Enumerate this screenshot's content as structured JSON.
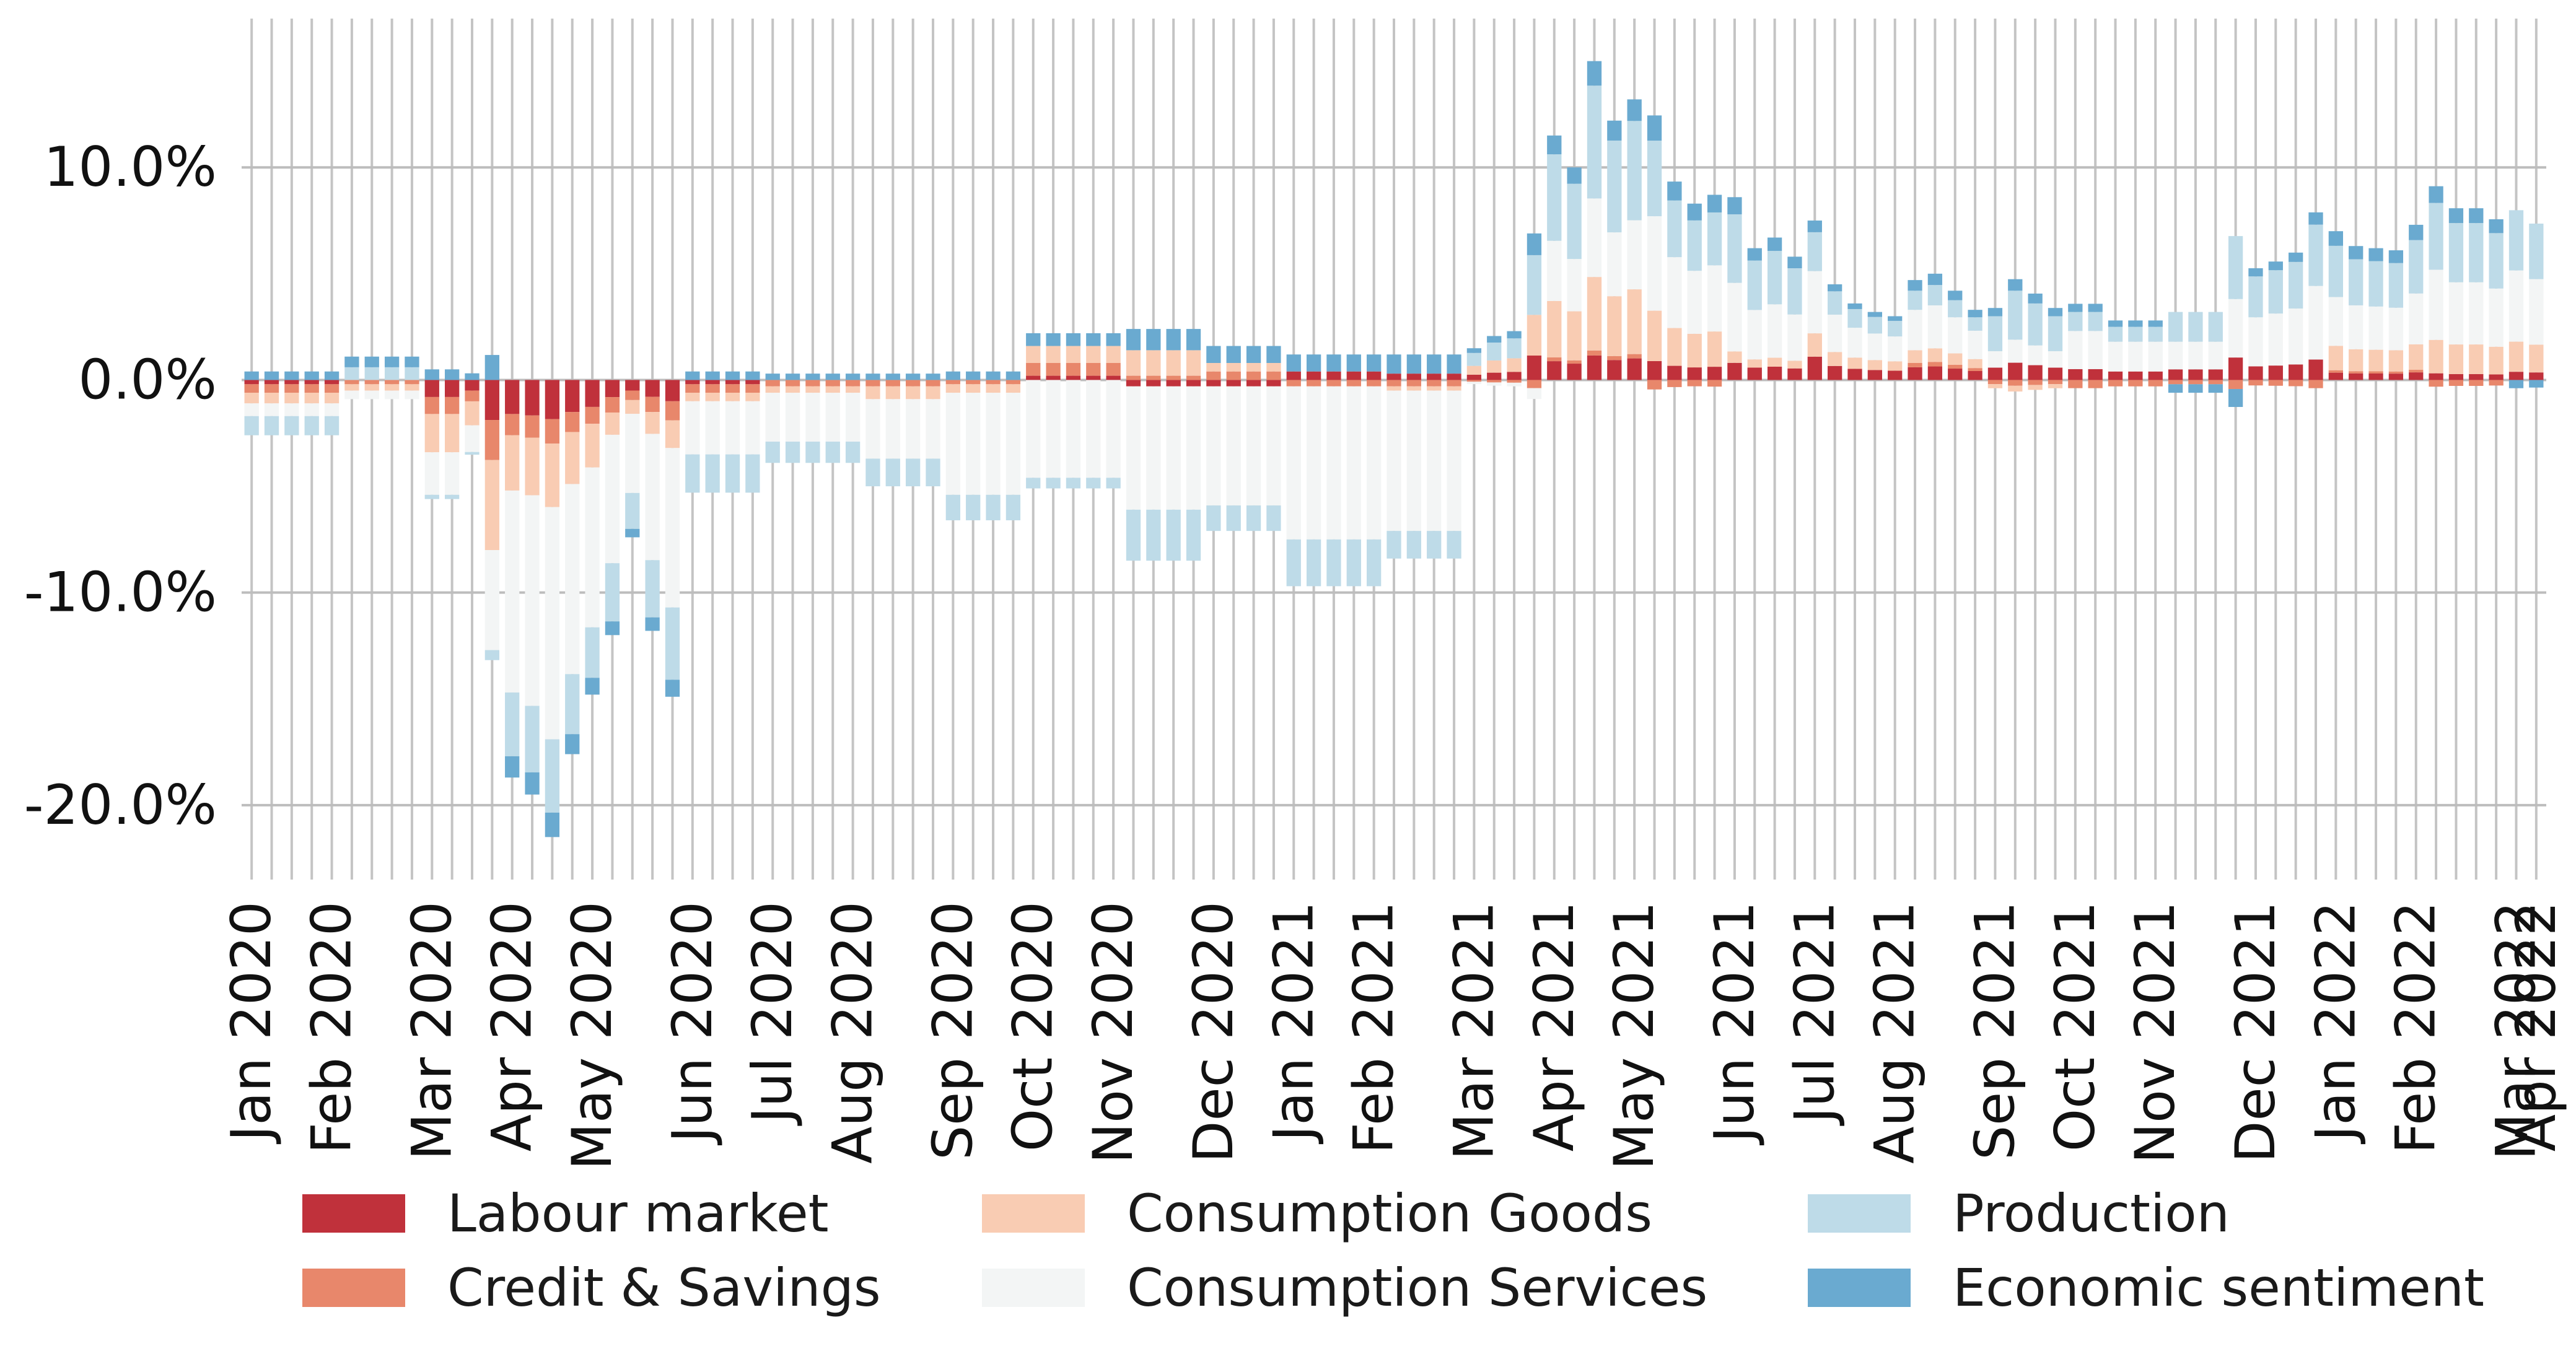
{
  "chart_data": {
    "type": "bar",
    "stacked": true,
    "x_tick_labels": [
      "Jan 2020",
      "Feb 2020",
      "Mar 2020",
      "Apr 2020",
      "May 2020",
      "Jun 2020",
      "Jul 2020",
      "Aug 2020",
      "Sep 2020",
      "Oct 2020",
      "Nov 2020",
      "Dec 2020",
      "Jan 2021",
      "Feb 2021",
      "Mar 2021",
      "Apr 2021",
      "May 2021",
      "Jun 2021",
      "Jul 2021",
      "Aug 2021",
      "Sep 2021",
      "Oct 2021",
      "Nov 2021",
      "Dec 2021",
      "Jan 2022",
      "Feb 2022",
      "Mar 2022",
      "Apr 2022"
    ],
    "y_ticks": [
      "-20.0%",
      "-10.0%",
      "0.0%",
      "10.0%"
    ],
    "y_tick_values": [
      -20,
      -10,
      0,
      10
    ],
    "ylim": [
      -23.5,
      17
    ],
    "grid": {
      "horizontal": true,
      "vertical": true
    },
    "legend_position": "bottom",
    "colors": {
      "Labour market": "#c0313b",
      "Credit & Savings": "#e8876b",
      "Consumption Goods": "#f9ccb3",
      "Consumption Services": "#f3f5f5",
      "Production": "#bedbe8",
      "Economic sentiment": "#6aaad0"
    },
    "weeks_per_month": 4.33,
    "months": [
      {
        "label": "Jan 2020",
        "values": [
          -0.2,
          -0.4,
          -0.5,
          -0.6,
          -0.9,
          0.4
        ]
      },
      {
        "label": "Feb 2020",
        "values": [
          0.0,
          -0.2,
          -0.3,
          -0.4,
          0.6,
          0.5
        ]
      },
      {
        "label": "Mar 2020",
        "values": [
          -0.8,
          -0.8,
          -1.8,
          -2.0,
          -0.2,
          0.5
        ]
      },
      {
        "label": "Apr 2020",
        "values": [
          -1.6,
          -1.0,
          -2.6,
          -9.5,
          -3.0,
          -1.0
        ]
      },
      {
        "label": "May 2020",
        "values": [
          -1.0,
          -0.9,
          -1.3,
          -7.5,
          -3.4,
          -0.8
        ]
      },
      {
        "label": "Jun 2020",
        "values": [
          -0.2,
          -0.4,
          -0.4,
          -2.5,
          -1.8,
          0.4
        ]
      },
      {
        "label": "Jul 2020",
        "values": [
          0.0,
          -0.3,
          -0.3,
          -2.3,
          -1.0,
          0.3
        ]
      },
      {
        "label": "Aug 2020",
        "values": [
          0.0,
          -0.3,
          -0.6,
          -2.8,
          -1.3,
          0.3
        ]
      },
      {
        "label": "Sep 2020",
        "values": [
          0.0,
          -0.2,
          -0.4,
          -4.8,
          -1.2,
          0.4
        ]
      },
      {
        "label": "Oct 2020",
        "values": [
          0.2,
          0.6,
          0.8,
          -4.6,
          -0.5,
          0.6
        ]
      },
      {
        "label": "Nov 2020",
        "values": [
          -0.3,
          0.2,
          1.2,
          -5.8,
          -2.4,
          1.0
        ]
      },
      {
        "label": "Dec 2020",
        "values": [
          -0.3,
          0.4,
          0.4,
          -5.6,
          -1.2,
          0.8
        ]
      },
      {
        "label": "Jan 2021",
        "values": [
          0.4,
          -0.3,
          0.0,
          -7.2,
          -2.2,
          0.8
        ]
      },
      {
        "label": "Feb 2021",
        "values": [
          0.3,
          -0.3,
          -0.2,
          -6.6,
          -1.3,
          0.9
        ]
      },
      {
        "label": "Mar 2021",
        "values": [
          0.9,
          -0.3,
          1.5,
          -0.4,
          2.2,
          0.8
        ]
      },
      {
        "label": "Apr 2021",
        "values": [
          1.0,
          0.2,
          3.0,
          3.2,
          4.6,
          1.0
        ]
      },
      {
        "label": "May 2021",
        "values": [
          0.6,
          -0.3,
          1.6,
          3.0,
          2.4,
          0.8
        ]
      },
      {
        "label": "Jun 2021",
        "values": [
          0.6,
          0.0,
          0.4,
          2.4,
          2.4,
          0.6
        ]
      },
      {
        "label": "Jul 2021",
        "values": [
          0.6,
          0.0,
          0.6,
          1.6,
          1.0,
          0.3
        ]
      },
      {
        "label": "Aug 2021",
        "values": [
          0.6,
          0.2,
          0.6,
          1.9,
          0.9,
          0.5
        ]
      },
      {
        "label": "Sep 2021",
        "values": [
          0.6,
          -0.2,
          -0.2,
          0.8,
          1.7,
          0.4
        ]
      },
      {
        "label": "Oct 2021",
        "values": [
          0.4,
          -0.3,
          0.0,
          1.4,
          0.7,
          0.3
        ]
      },
      {
        "label": "Nov 2021",
        "values": [
          0.5,
          -0.2,
          0.0,
          1.3,
          1.4,
          -0.4
        ]
      },
      {
        "label": "Dec 2021",
        "values": [
          0.5,
          -0.2,
          0.0,
          1.8,
          1.5,
          0.3
        ]
      },
      {
        "label": "Jan 2022",
        "values": [
          0.3,
          0.1,
          1.0,
          2.0,
          2.1,
          0.6
        ]
      },
      {
        "label": "Feb 2022",
        "values": [
          0.2,
          -0.2,
          1.0,
          2.1,
          2.0,
          0.5
        ]
      },
      {
        "label": "Mar 2022",
        "values": [
          0.3,
          0.0,
          1.1,
          2.6,
          2.2,
          -0.3
        ]
      },
      {
        "label": "Apr 2022",
        "values": [
          0.2,
          0.0,
          1.1,
          2.8,
          2.0,
          -0.2
        ]
      }
    ],
    "weekly_net_totals": [
      0.6,
      0.6,
      0.6,
      0.5,
      1.5,
      0.8,
      1.3,
      0.9,
      2.2,
      0.9,
      0.7,
      -3.2,
      -12.0,
      -18.7,
      -19.5,
      -21.5,
      -17.6,
      -14.8,
      -12.0,
      -7.4,
      -11.8,
      0.2,
      0.4,
      0.6,
      0.4,
      0.6,
      0.7,
      0.6,
      0.5,
      0.4,
      0.6,
      0.5,
      0.4,
      0.4,
      0.6,
      0.4,
      0.6,
      0.5,
      0.6,
      0.6,
      1.2,
      2.0,
      2.2,
      1.8,
      1.5,
      2.0,
      2.6,
      2.2,
      2.8,
      0.6,
      0.8,
      1.6,
      2.2,
      2.6,
      1.2,
      1.8,
      2.3,
      1.4,
      1.4,
      1.3,
      1.4,
      1.3,
      1.8,
      2.0,
      6.0,
      11.5,
      10.0,
      15.0,
      12.2,
      13.2,
      12.0,
      9.0,
      8.0,
      8.4,
      8.6,
      6.2,
      6.7,
      5.8,
      7.5,
      4.5,
      3.6,
      3.2,
      3.0,
      4.7,
      5.0,
      4.2,
      3.3,
      3.0,
      4.2,
      3.6,
      3.0,
      3.2,
      3.2,
      -0.6,
      -0.8,
      -1.6,
      -0.6,
      -0.6,
      -0.8,
      5.5,
      5.0,
      5.3,
      5.7,
      7.5,
      7.0,
      6.3,
      6.2,
      6.1,
      7.3,
      8.8,
      7.8,
      7.8,
      7.3,
      7.6,
      7.0
    ],
    "legend": [
      "Labour market",
      "Credit & Savings",
      "Consumption Goods",
      "Consumption Services",
      "Production",
      "Economic sentiment"
    ]
  }
}
